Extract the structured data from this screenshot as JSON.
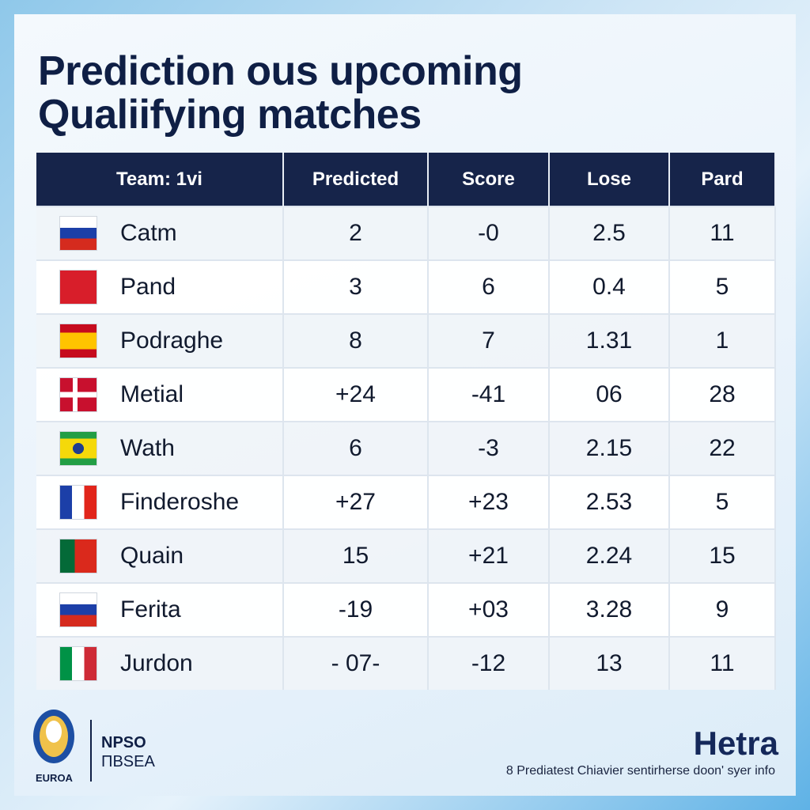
{
  "header": {
    "title_lines": [
      "Prediction ous upcoming",
      "Qualiifying matches"
    ]
  },
  "table": {
    "columns": [
      "Team: 1vi",
      "Predicted",
      "Score",
      "Lose",
      "Pard"
    ],
    "rows": [
      [
        "Catm",
        "2",
        "-0",
        "2.5",
        "11"
      ],
      [
        "Pand",
        "3",
        "6",
        "0.4",
        "5"
      ],
      [
        "Podraghe",
        "8",
        "7",
        "1.31",
        "1"
      ],
      [
        "Metial",
        "+24",
        "-41",
        "06",
        "28"
      ],
      [
        "Wath",
        "6",
        "-3",
        "2.15",
        "22"
      ],
      [
        "Finderoshe",
        "+27",
        "+23",
        "2.53",
        "5"
      ],
      [
        "Quain",
        "15",
        "+21",
        "2.24",
        "15"
      ],
      [
        "Ferita",
        "-19",
        "+03",
        "3.28",
        "9"
      ],
      [
        "Jurdon",
        "- 07-",
        "-12",
        "13",
        "11"
      ]
    ]
  },
  "footer": {
    "logo_text": "EUROA",
    "org_lines": [
      "NPSO",
      "ΠBSEA"
    ],
    "brand": "Hetra",
    "note": "8 Prediatest Chiavier sentirherse doon' syer info"
  }
}
